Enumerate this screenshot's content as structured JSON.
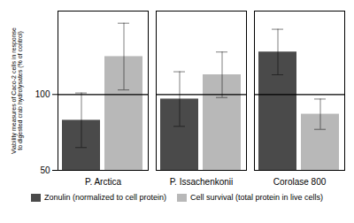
{
  "chart_data": {
    "type": "bar",
    "categories": [
      "P. Arctica",
      "P. Issachenkonii",
      "Corolase 800"
    ],
    "series": [
      {
        "name": "Zonulin (normalized to cell protein)",
        "color": "#4a4a4a",
        "values": [
          83,
          97,
          128
        ],
        "errors": [
          18,
          18,
          15
        ]
      },
      {
        "name": "Cell survival (total protein in live cells)",
        "color": "#b8b8b8",
        "values": [
          125,
          113,
          87
        ],
        "errors": [
          22,
          15,
          10
        ]
      }
    ],
    "ylabel": "Viability measures of Caco-2 cells in response\nto digested crab hydrolysates (% of control)",
    "ylim": [
      50,
      155
    ],
    "yticks": [
      50,
      100
    ],
    "reference_line": 100,
    "legend": "bottom"
  }
}
